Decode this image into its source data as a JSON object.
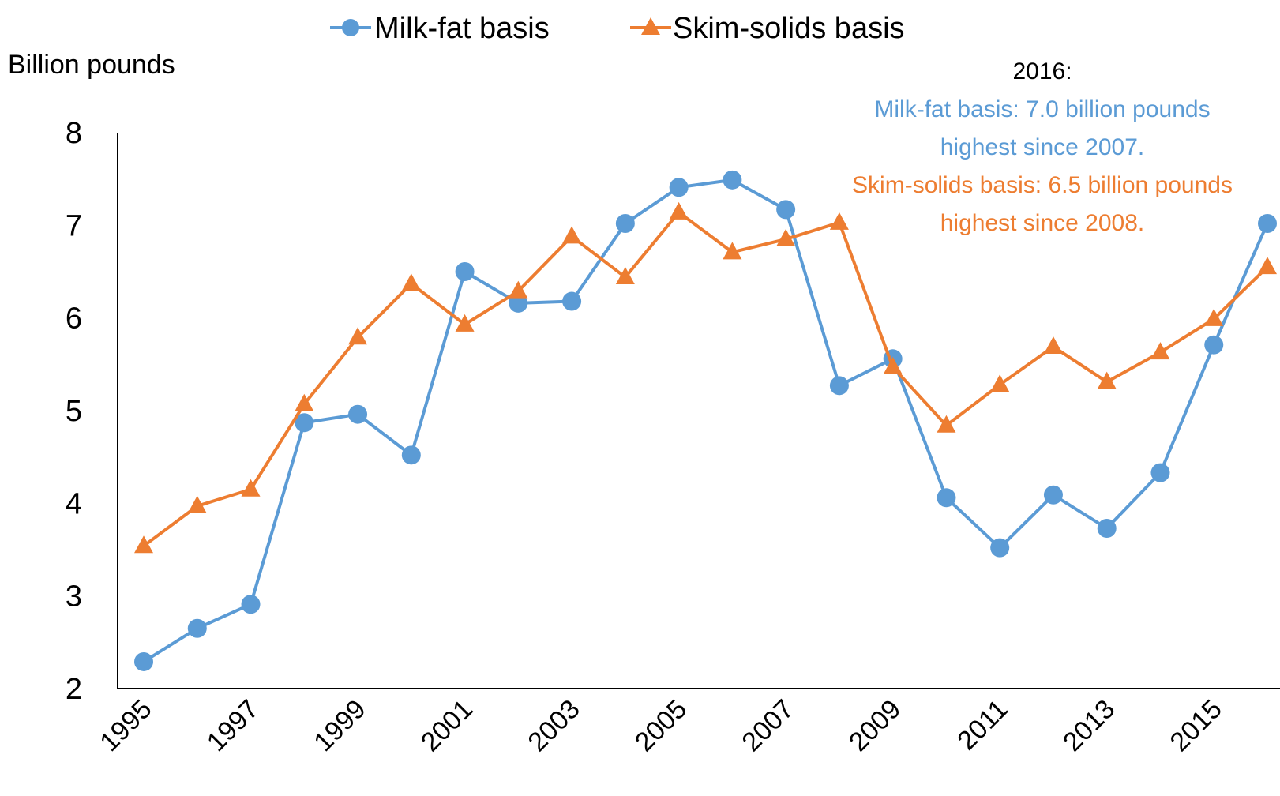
{
  "chart_data": {
    "type": "line",
    "ylabel": "Billion pounds",
    "ylim": [
      2,
      8
    ],
    "yticks": [
      "2",
      "3",
      "4",
      "5",
      "6",
      "7",
      "8"
    ],
    "xlim": [
      1995,
      2016
    ],
    "xticks": [
      "1995",
      "1997",
      "1999",
      "2001",
      "2003",
      "2005",
      "2007",
      "2009",
      "2011",
      "2013",
      "2015"
    ],
    "x": [
      1995,
      1996,
      1997,
      1998,
      1999,
      2000,
      2001,
      2002,
      2003,
      2004,
      2005,
      2006,
      2007,
      2008,
      2009,
      2010,
      2011,
      2012,
      2013,
      2014,
      2015,
      2016
    ],
    "legend_position": "top",
    "grid": false,
    "series": [
      {
        "name": "Milk-fat basis",
        "color": "#5b9bd5",
        "marker": "circle",
        "values": [
          2.29,
          2.65,
          2.91,
          4.87,
          4.96,
          4.52,
          6.5,
          6.16,
          6.18,
          7.02,
          7.41,
          7.49,
          7.17,
          5.27,
          5.56,
          4.06,
          3.52,
          4.09,
          3.73,
          4.33,
          5.71,
          7.02
        ]
      },
      {
        "name": "Skim-solids basis",
        "color": "#ed7d31",
        "marker": "triangle",
        "values": [
          3.54,
          3.97,
          4.15,
          5.07,
          5.79,
          6.37,
          5.93,
          6.29,
          6.88,
          6.44,
          7.14,
          6.71,
          6.85,
          7.03,
          5.47,
          4.84,
          5.28,
          5.69,
          5.31,
          5.63,
          5.99,
          6.55
        ]
      }
    ],
    "annotation": {
      "header": "2016:",
      "lines": [
        {
          "text": "Milk-fat basis: 7.0 billion pounds",
          "color": "#5b9bd5"
        },
        {
          "text": "highest since 2007.",
          "color": "#5b9bd5"
        },
        {
          "text": "Skim-solids basis: 6.5 billion pounds",
          "color": "#ed7d31"
        },
        {
          "text": "highest since 2008.",
          "color": "#ed7d31"
        }
      ]
    }
  }
}
